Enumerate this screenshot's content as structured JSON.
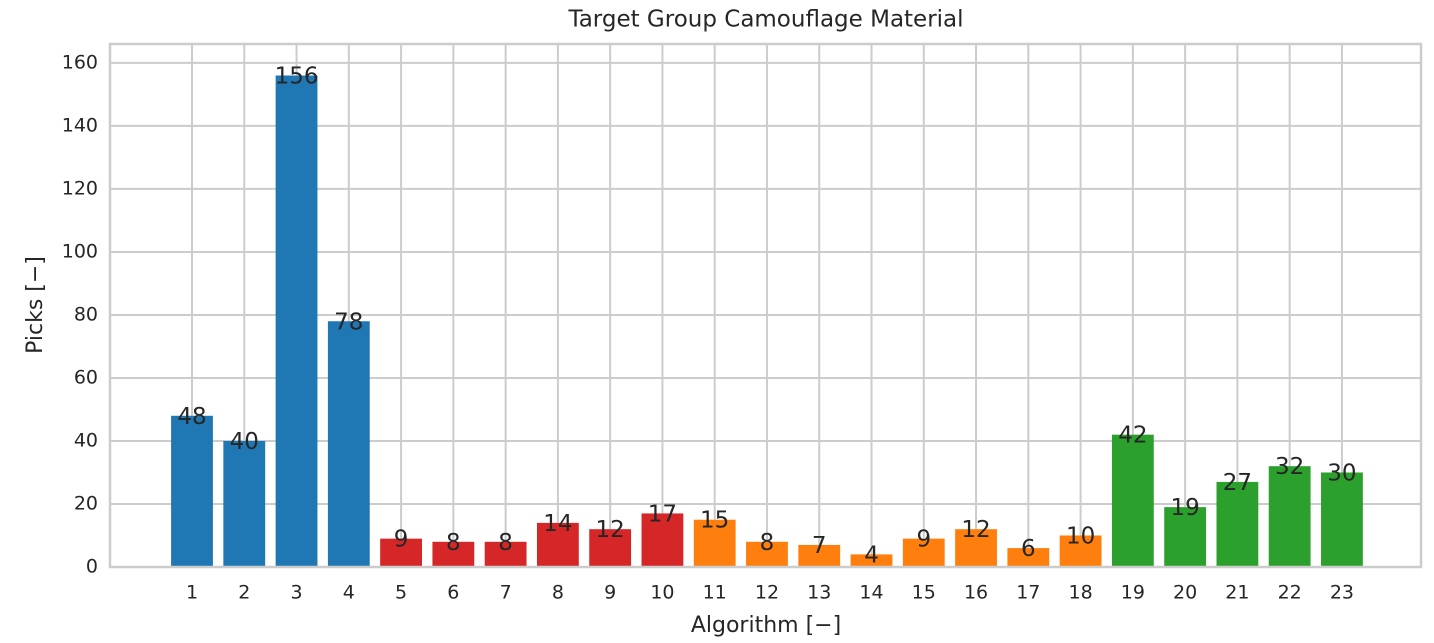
{
  "chart_data": {
    "type": "bar",
    "title": "Target Group Camouflage Material",
    "xlabel": "Algorithm [−]",
    "ylabel": "Picks [−]",
    "categories": [
      "1",
      "2",
      "3",
      "4",
      "5",
      "6",
      "7",
      "8",
      "9",
      "10",
      "11",
      "12",
      "13",
      "14",
      "15",
      "16",
      "17",
      "18",
      "19",
      "20",
      "21",
      "22",
      "23"
    ],
    "values": [
      48,
      40,
      156,
      78,
      9,
      8,
      8,
      14,
      12,
      17,
      15,
      8,
      7,
      4,
      9,
      12,
      6,
      10,
      42,
      19,
      27,
      32,
      30
    ],
    "colors": [
      "#1f77b4",
      "#1f77b4",
      "#1f77b4",
      "#1f77b4",
      "#d62728",
      "#d62728",
      "#d62728",
      "#d62728",
      "#d62728",
      "#d62728",
      "#ff7f0e",
      "#ff7f0e",
      "#ff7f0e",
      "#ff7f0e",
      "#ff7f0e",
      "#ff7f0e",
      "#ff7f0e",
      "#ff7f0e",
      "#2ca02c",
      "#2ca02c",
      "#2ca02c",
      "#2ca02c",
      "#2ca02c"
    ],
    "ylim": [
      0,
      166
    ],
    "yticks": [
      0,
      20,
      40,
      60,
      80,
      100,
      120,
      140,
      160
    ],
    "grid": true
  }
}
